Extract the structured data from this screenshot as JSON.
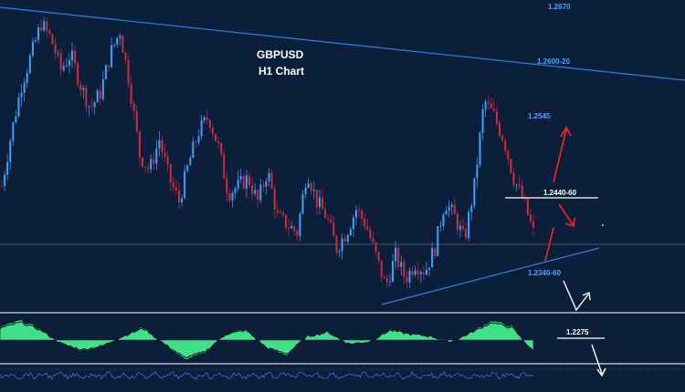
{
  "chart_data": {
    "type": "candlestick",
    "title": "GBPUSD",
    "subtitle": "H1 Chart",
    "levels": [
      {
        "label": "1.2670",
        "value": 1.267
      },
      {
        "label": "1.2600-20",
        "value": 1.261
      },
      {
        "label": "1.2545",
        "value": 1.2545
      },
      {
        "label": "1.2440-60",
        "value": 1.245
      },
      {
        "label": "1.2340-60",
        "value": 1.235
      },
      {
        "label": "1.2275",
        "value": 1.2275
      }
    ],
    "price_path": [
      1.245,
      1.252,
      1.258,
      1.262,
      1.266,
      1.264,
      1.26,
      1.262,
      1.258,
      1.255,
      1.257,
      1.262,
      1.265,
      1.258,
      1.249,
      1.247,
      1.251,
      1.246,
      1.243,
      1.248,
      1.252,
      1.254,
      1.25,
      1.244,
      1.245,
      1.246,
      1.243,
      1.247,
      1.241,
      1.24,
      1.239,
      1.247,
      1.243,
      1.241,
      1.237,
      1.239,
      1.242,
      1.24,
      1.236,
      1.232,
      1.236,
      1.233,
      1.235,
      1.234,
      1.237,
      1.243,
      1.241,
      1.238,
      1.245,
      1.256,
      1.254,
      1.251,
      1.246,
      1.243,
      1.239
    ],
    "oscillator": [
      0.6,
      0.9,
      0.5,
      -0.2,
      -0.5,
      -0.3,
      0.2,
      0.6,
      -0.2,
      -0.9,
      -0.6,
      0.3,
      0.5,
      -0.4,
      -0.7,
      0.2,
      0.4,
      -0.2,
      -0.1,
      0.5,
      0.3,
      0.2,
      -0.1,
      0.4,
      0.9,
      0.6,
      -0.6
    ]
  },
  "colors": {
    "background": "#0b1f3a",
    "bull": "#3da3ff",
    "bear": "#d12c3c",
    "trendline": "#2f7fe0",
    "arrow_up": "#ff2222",
    "arrow_down": "#ff2222",
    "white_arrow": "#ffffff",
    "osc_fill": "#3fe08a",
    "level_text": "#4aa3ff"
  }
}
